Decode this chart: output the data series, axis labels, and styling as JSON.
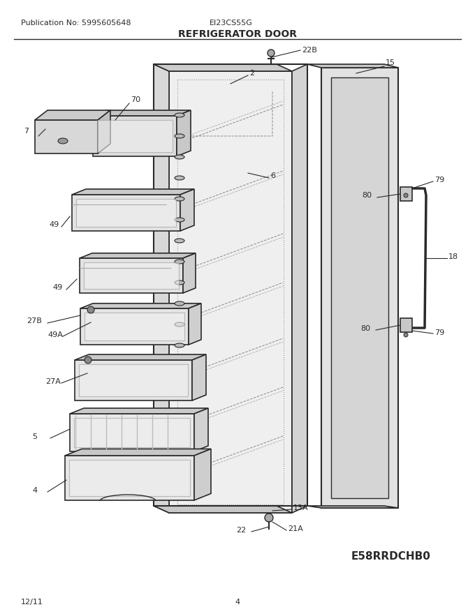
{
  "title": "REFRIGERATOR DOOR",
  "pub_no": "Publication No: 5995605648",
  "model": "EI23CS55G",
  "diagram_code": "E58RRDCHB0",
  "date": "12/11",
  "page": "4",
  "bg_color": "#ffffff",
  "lc": "#2a2a2a",
  "tc": "#2a2a2a",
  "figsize": [
    6.8,
    8.8
  ],
  "dpi": 100
}
